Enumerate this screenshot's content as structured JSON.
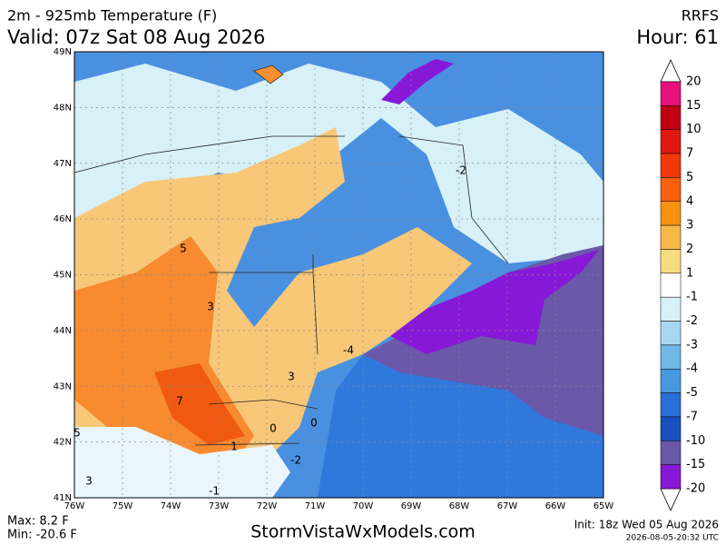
{
  "header": {
    "title": "2m - 925mb Temperature (F)",
    "valid": "Valid: 07z Sat 08 Aug 2026",
    "model": "RRFS",
    "hour": "Hour: 61"
  },
  "map": {
    "lat_labels": [
      "49N",
      "48N",
      "47N",
      "46N",
      "45N",
      "44N",
      "43N",
      "42N",
      "41N"
    ],
    "lon_labels": [
      "76W",
      "75W",
      "74W",
      "73W",
      "72W",
      "71W",
      "70W",
      "69W",
      "68W",
      "67W",
      "66W",
      "65W"
    ],
    "contour_labels": [
      "-2",
      "5",
      "3",
      "-4",
      "3",
      "7",
      "0",
      "0",
      "1",
      "-2",
      "-1",
      "5",
      "3"
    ]
  },
  "colorbar": {
    "labels": [
      20,
      15,
      10,
      7,
      5,
      4,
      3,
      2,
      1,
      -1,
      -2,
      -3,
      -4,
      -5,
      -7,
      -10,
      -15,
      -20
    ],
    "colors": [
      "#e8107c",
      "#c00010",
      "#e01810",
      "#f03808",
      "#f86010",
      "#f89010",
      "#f8b848",
      "#f8dc80",
      "#ffffff",
      "#d8f0f8",
      "#a8d8f0",
      "#70b8e8",
      "#4898e0",
      "#2870d8",
      "#1850c0",
      "#6858a8",
      "#8818d8"
    ]
  },
  "footer": {
    "max": "Max: 8.2 F",
    "min": "Min: -20.6 F",
    "site": "StormVistaWxModels.com",
    "init": "Init: 18z Wed 05 Aug 2026",
    "stamp": "2026-08-05-20:32 UTC"
  }
}
